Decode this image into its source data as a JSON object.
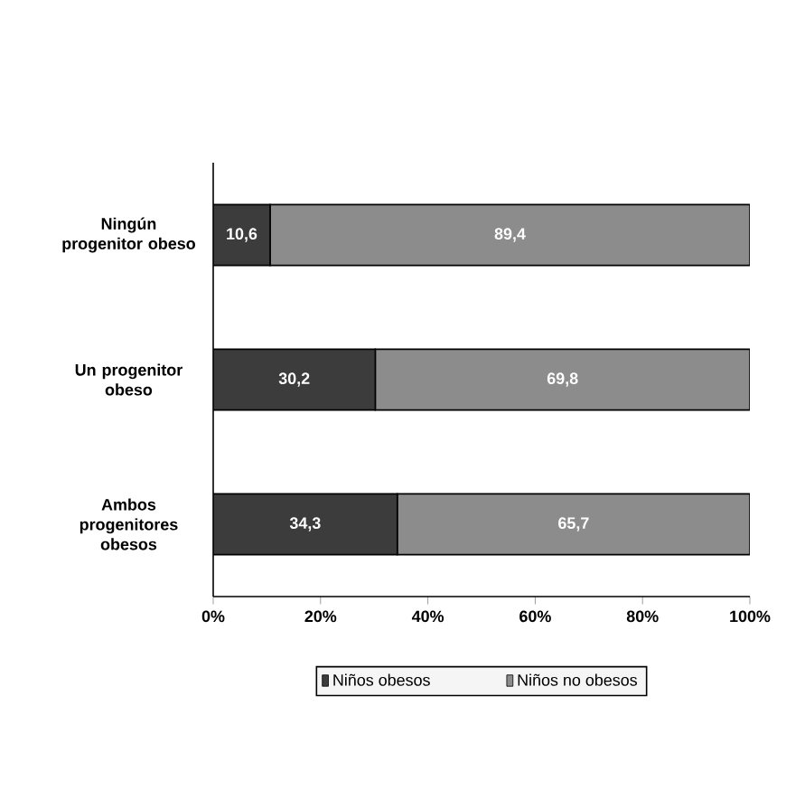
{
  "chart_data": {
    "type": "bar",
    "orientation": "horizontal",
    "stacked": true,
    "categories": [
      "Ningún progenitor obeso",
      "Un progenitor obeso",
      "Ambos progenitores obesos"
    ],
    "series": [
      {
        "name": "Niños obesos",
        "color": "#3c3c3c",
        "values": [
          10.6,
          30.2,
          34.3
        ],
        "value_labels": [
          "10,6",
          "30,2",
          "34,3"
        ]
      },
      {
        "name": "Niños no obesos",
        "color": "#8c8c8c",
        "values": [
          89.4,
          69.8,
          65.7
        ],
        "value_labels": [
          "89,4",
          "69,8",
          "65,7"
        ]
      }
    ],
    "xlim": [
      0,
      100
    ],
    "xticks": [
      {
        "value": 0,
        "label": "0%"
      },
      {
        "value": 20,
        "label": "20%"
      },
      {
        "value": 40,
        "label": "40%"
      },
      {
        "value": 60,
        "label": "60%"
      },
      {
        "value": 80,
        "label": "80%"
      },
      {
        "value": 100,
        "label": "100%"
      }
    ],
    "grid": false,
    "legend": "bottom"
  }
}
